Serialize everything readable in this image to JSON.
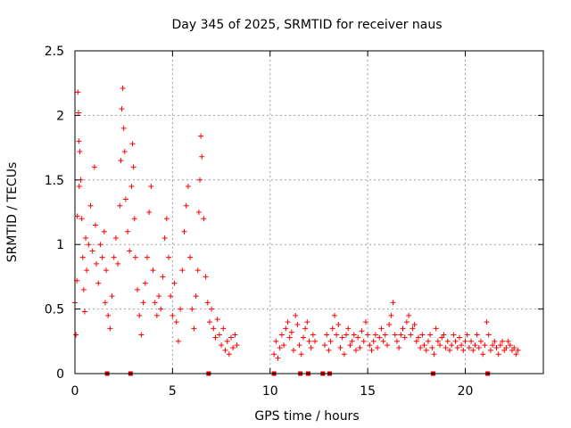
{
  "chart_data": {
    "type": "scatter",
    "title": "Day 345 of 2025, SRMTID for receiver naus",
    "xlabel": "GPS time / hours",
    "ylabel": "SRMTID / TECUs",
    "xlim": [
      0,
      24
    ],
    "ylim": [
      0,
      2.5
    ],
    "grid": true,
    "x_ticks": [
      0,
      5,
      10,
      15,
      20
    ],
    "x_tick_labels": [
      "0",
      "5",
      "10",
      "15",
      "20"
    ],
    "y_ticks": [
      0,
      0.5,
      1,
      1.5,
      2,
      2.5
    ],
    "y_tick_labels": [
      "0",
      "0.5",
      "1",
      "1.5",
      "2",
      "2.5"
    ],
    "marker": "+",
    "series": [
      {
        "name": "SRMTID",
        "color": "#ff0000",
        "points": [
          [
            0.0,
            0.55
          ],
          [
            0.05,
            0.3
          ],
          [
            0.1,
            0.72
          ],
          [
            0.12,
            1.22
          ],
          [
            0.15,
            2.18
          ],
          [
            0.18,
            2.02
          ],
          [
            0.2,
            1.8
          ],
          [
            0.22,
            1.45
          ],
          [
            0.25,
            1.72
          ],
          [
            0.3,
            1.5
          ],
          [
            0.35,
            1.2
          ],
          [
            0.4,
            0.9
          ],
          [
            0.45,
            0.65
          ],
          [
            0.5,
            0.48
          ],
          [
            0.55,
            1.05
          ],
          [
            0.6,
            0.8
          ],
          [
            0.7,
            1.0
          ],
          [
            0.8,
            1.3
          ],
          [
            0.9,
            0.95
          ],
          [
            1.0,
            1.6
          ],
          [
            1.05,
            1.15
          ],
          [
            1.1,
            0.85
          ],
          [
            1.2,
            0.7
          ],
          [
            1.3,
            1.0
          ],
          [
            1.4,
            0.9
          ],
          [
            1.5,
            1.1
          ],
          [
            1.55,
            0.55
          ],
          [
            1.6,
            0.8
          ],
          [
            1.7,
            0.45
          ],
          [
            1.8,
            0.35
          ],
          [
            1.9,
            0.6
          ],
          [
            2.0,
            0.9
          ],
          [
            2.1,
            1.05
          ],
          [
            2.2,
            0.85
          ],
          [
            2.3,
            1.3
          ],
          [
            2.35,
            1.65
          ],
          [
            2.4,
            2.05
          ],
          [
            2.45,
            2.21
          ],
          [
            2.5,
            1.9
          ],
          [
            2.55,
            1.72
          ],
          [
            2.6,
            1.35
          ],
          [
            2.7,
            1.1
          ],
          [
            2.8,
            0.95
          ],
          [
            2.9,
            1.45
          ],
          [
            2.95,
            1.78
          ],
          [
            3.0,
            1.6
          ],
          [
            3.05,
            1.2
          ],
          [
            3.1,
            0.9
          ],
          [
            3.2,
            0.65
          ],
          [
            3.3,
            0.45
          ],
          [
            3.4,
            0.3
          ],
          [
            3.5,
            0.55
          ],
          [
            3.6,
            0.7
          ],
          [
            3.7,
            0.9
          ],
          [
            3.8,
            1.25
          ],
          [
            3.9,
            1.45
          ],
          [
            4.0,
            0.8
          ],
          [
            4.1,
            0.55
          ],
          [
            4.2,
            0.45
          ],
          [
            4.3,
            0.6
          ],
          [
            4.4,
            0.5
          ],
          [
            4.5,
            0.75
          ],
          [
            4.6,
            1.05
          ],
          [
            4.7,
            1.2
          ],
          [
            4.8,
            0.9
          ],
          [
            4.9,
            0.6
          ],
          [
            5.0,
            0.45
          ],
          [
            5.1,
            0.7
          ],
          [
            5.2,
            0.4
          ],
          [
            5.3,
            0.25
          ],
          [
            5.4,
            0.5
          ],
          [
            5.5,
            0.8
          ],
          [
            5.6,
            1.1
          ],
          [
            5.7,
            1.3
          ],
          [
            5.8,
            1.45
          ],
          [
            5.9,
            0.9
          ],
          [
            6.0,
            0.5
          ],
          [
            6.1,
            0.35
          ],
          [
            6.2,
            0.6
          ],
          [
            6.3,
            0.8
          ],
          [
            6.35,
            1.25
          ],
          [
            6.4,
            1.5
          ],
          [
            6.45,
            1.84
          ],
          [
            6.5,
            1.68
          ],
          [
            6.6,
            1.2
          ],
          [
            6.7,
            0.75
          ],
          [
            6.8,
            0.55
          ],
          [
            6.9,
            0.4
          ],
          [
            7.0,
            0.5
          ],
          [
            7.1,
            0.35
          ],
          [
            7.2,
            0.28
          ],
          [
            7.3,
            0.42
          ],
          [
            7.4,
            0.3
          ],
          [
            7.5,
            0.22
          ],
          [
            7.6,
            0.35
          ],
          [
            7.7,
            0.18
          ],
          [
            7.8,
            0.25
          ],
          [
            7.9,
            0.15
          ],
          [
            8.0,
            0.28
          ],
          [
            8.1,
            0.2
          ],
          [
            8.2,
            0.3
          ],
          [
            8.3,
            0.22
          ],
          [
            10.2,
            0.15
          ],
          [
            10.3,
            0.25
          ],
          [
            10.4,
            0.12
          ],
          [
            10.5,
            0.2
          ],
          [
            10.6,
            0.3
          ],
          [
            10.7,
            0.22
          ],
          [
            10.8,
            0.35
          ],
          [
            10.9,
            0.4
          ],
          [
            11.0,
            0.28
          ],
          [
            11.1,
            0.32
          ],
          [
            11.2,
            0.18
          ],
          [
            11.3,
            0.45
          ],
          [
            11.4,
            0.38
          ],
          [
            11.5,
            0.22
          ],
          [
            11.6,
            0.15
          ],
          [
            11.7,
            0.28
          ],
          [
            11.8,
            0.35
          ],
          [
            11.9,
            0.4
          ],
          [
            12.0,
            0.25
          ],
          [
            12.1,
            0.2
          ],
          [
            12.2,
            0.3
          ],
          [
            12.3,
            0.25
          ],
          [
            12.8,
            0.22
          ],
          [
            12.9,
            0.3
          ],
          [
            13.0,
            0.18
          ],
          [
            13.1,
            0.25
          ],
          [
            13.2,
            0.35
          ],
          [
            13.3,
            0.45
          ],
          [
            13.4,
            0.3
          ],
          [
            13.5,
            0.38
          ],
          [
            13.6,
            0.2
          ],
          [
            13.7,
            0.28
          ],
          [
            13.8,
            0.15
          ],
          [
            13.9,
            0.3
          ],
          [
            14.0,
            0.35
          ],
          [
            14.1,
            0.22
          ],
          [
            14.2,
            0.25
          ],
          [
            14.3,
            0.3
          ],
          [
            14.4,
            0.18
          ],
          [
            14.5,
            0.28
          ],
          [
            14.6,
            0.2
          ],
          [
            14.7,
            0.33
          ],
          [
            14.8,
            0.25
          ],
          [
            14.9,
            0.4
          ],
          [
            15.0,
            0.3
          ],
          [
            15.1,
            0.22
          ],
          [
            15.2,
            0.18
          ],
          [
            15.3,
            0.25
          ],
          [
            15.4,
            0.3
          ],
          [
            15.5,
            0.2
          ],
          [
            15.6,
            0.28
          ],
          [
            15.7,
            0.35
          ],
          [
            15.8,
            0.25
          ],
          [
            15.9,
            0.3
          ],
          [
            16.0,
            0.22
          ],
          [
            16.1,
            0.38
          ],
          [
            16.2,
            0.45
          ],
          [
            16.3,
            0.55
          ],
          [
            16.4,
            0.3
          ],
          [
            16.5,
            0.25
          ],
          [
            16.6,
            0.2
          ],
          [
            16.7,
            0.3
          ],
          [
            16.8,
            0.35
          ],
          [
            16.9,
            0.28
          ],
          [
            17.0,
            0.4
          ],
          [
            17.1,
            0.45
          ],
          [
            17.2,
            0.3
          ],
          [
            17.3,
            0.35
          ],
          [
            17.4,
            0.38
          ],
          [
            17.5,
            0.25
          ],
          [
            17.6,
            0.28
          ],
          [
            17.7,
            0.2
          ],
          [
            17.8,
            0.3
          ],
          [
            17.9,
            0.22
          ],
          [
            18.0,
            0.18
          ],
          [
            18.1,
            0.25
          ],
          [
            18.2,
            0.3
          ],
          [
            18.3,
            0.2
          ],
          [
            18.4,
            0.15
          ],
          [
            18.5,
            0.35
          ],
          [
            18.6,
            0.25
          ],
          [
            18.7,
            0.22
          ],
          [
            18.8,
            0.28
          ],
          [
            18.9,
            0.3
          ],
          [
            19.0,
            0.2
          ],
          [
            19.1,
            0.25
          ],
          [
            19.2,
            0.18
          ],
          [
            19.3,
            0.22
          ],
          [
            19.4,
            0.3
          ],
          [
            19.5,
            0.25
          ],
          [
            19.6,
            0.2
          ],
          [
            19.7,
            0.28
          ],
          [
            19.8,
            0.22
          ],
          [
            19.9,
            0.18
          ],
          [
            20.0,
            0.25
          ],
          [
            20.1,
            0.3
          ],
          [
            20.2,
            0.2
          ],
          [
            20.3,
            0.25
          ],
          [
            20.4,
            0.18
          ],
          [
            20.5,
            0.22
          ],
          [
            20.6,
            0.3
          ],
          [
            20.7,
            0.2
          ],
          [
            20.8,
            0.25
          ],
          [
            20.9,
            0.15
          ],
          [
            21.0,
            0.22
          ],
          [
            21.1,
            0.4
          ],
          [
            21.2,
            0.3
          ],
          [
            21.3,
            0.18
          ],
          [
            21.4,
            0.22
          ],
          [
            21.5,
            0.25
          ],
          [
            21.6,
            0.2
          ],
          [
            21.7,
            0.15
          ],
          [
            21.8,
            0.22
          ],
          [
            21.9,
            0.25
          ],
          [
            22.0,
            0.18
          ],
          [
            22.1,
            0.2
          ],
          [
            22.2,
            0.25
          ],
          [
            22.3,
            0.22
          ],
          [
            22.4,
            0.18
          ],
          [
            22.5,
            0.2
          ],
          [
            22.6,
            0.15
          ],
          [
            22.7,
            0.18
          ]
        ]
      }
    ],
    "baseline_markers": {
      "color": "#cc0000",
      "x": [
        1.65,
        2.85,
        6.85,
        10.2,
        11.55,
        11.95,
        12.7,
        13.05,
        18.35,
        21.15
      ]
    }
  }
}
